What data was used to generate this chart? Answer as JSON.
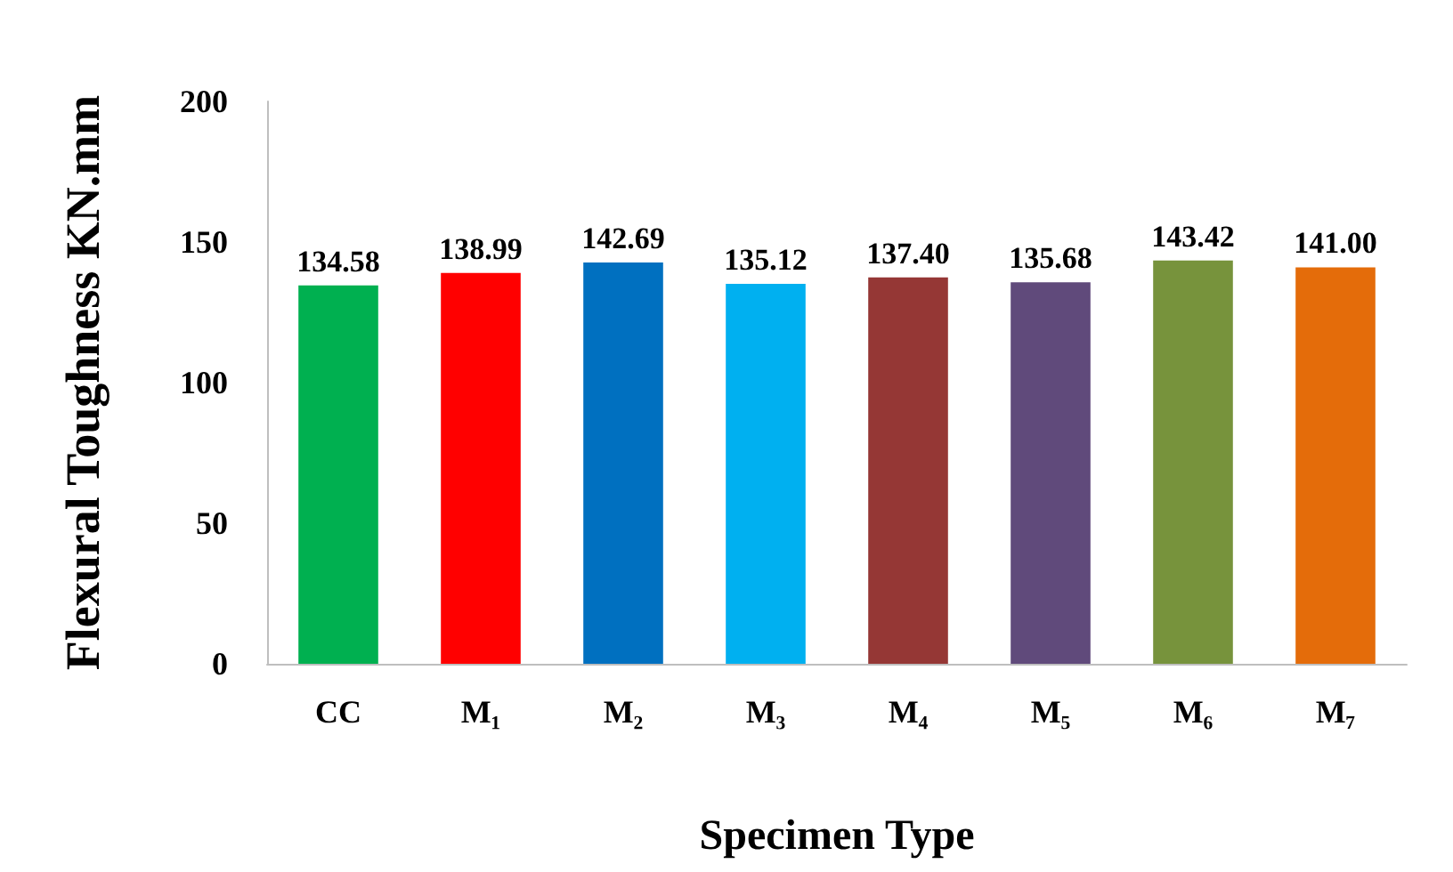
{
  "chart_data": {
    "type": "bar",
    "xlabel": "Specimen Type",
    "ylabel": "Flexural Toughness KN.mm",
    "categories": [
      "CC",
      "M₁",
      "M₂",
      "M₃",
      "M₄",
      "M₅",
      "M₆",
      "M₇"
    ],
    "values": [
      134.58,
      138.99,
      142.69,
      135.12,
      137.4,
      135.68,
      143.42,
      141.0
    ],
    "value_labels": [
      "134.58",
      "138.99",
      "142.69",
      "135.12",
      "137.40",
      "135.68",
      "143.42",
      "141.00"
    ],
    "colors": [
      "#00b050",
      "#ff0000",
      "#0070c0",
      "#00b0f0",
      "#953735",
      "#604a7b",
      "#77933c",
      "#e46c0a"
    ],
    "ylim": [
      0,
      200
    ],
    "yticks": [
      0,
      50,
      100,
      150,
      200
    ],
    "grid": false
  }
}
